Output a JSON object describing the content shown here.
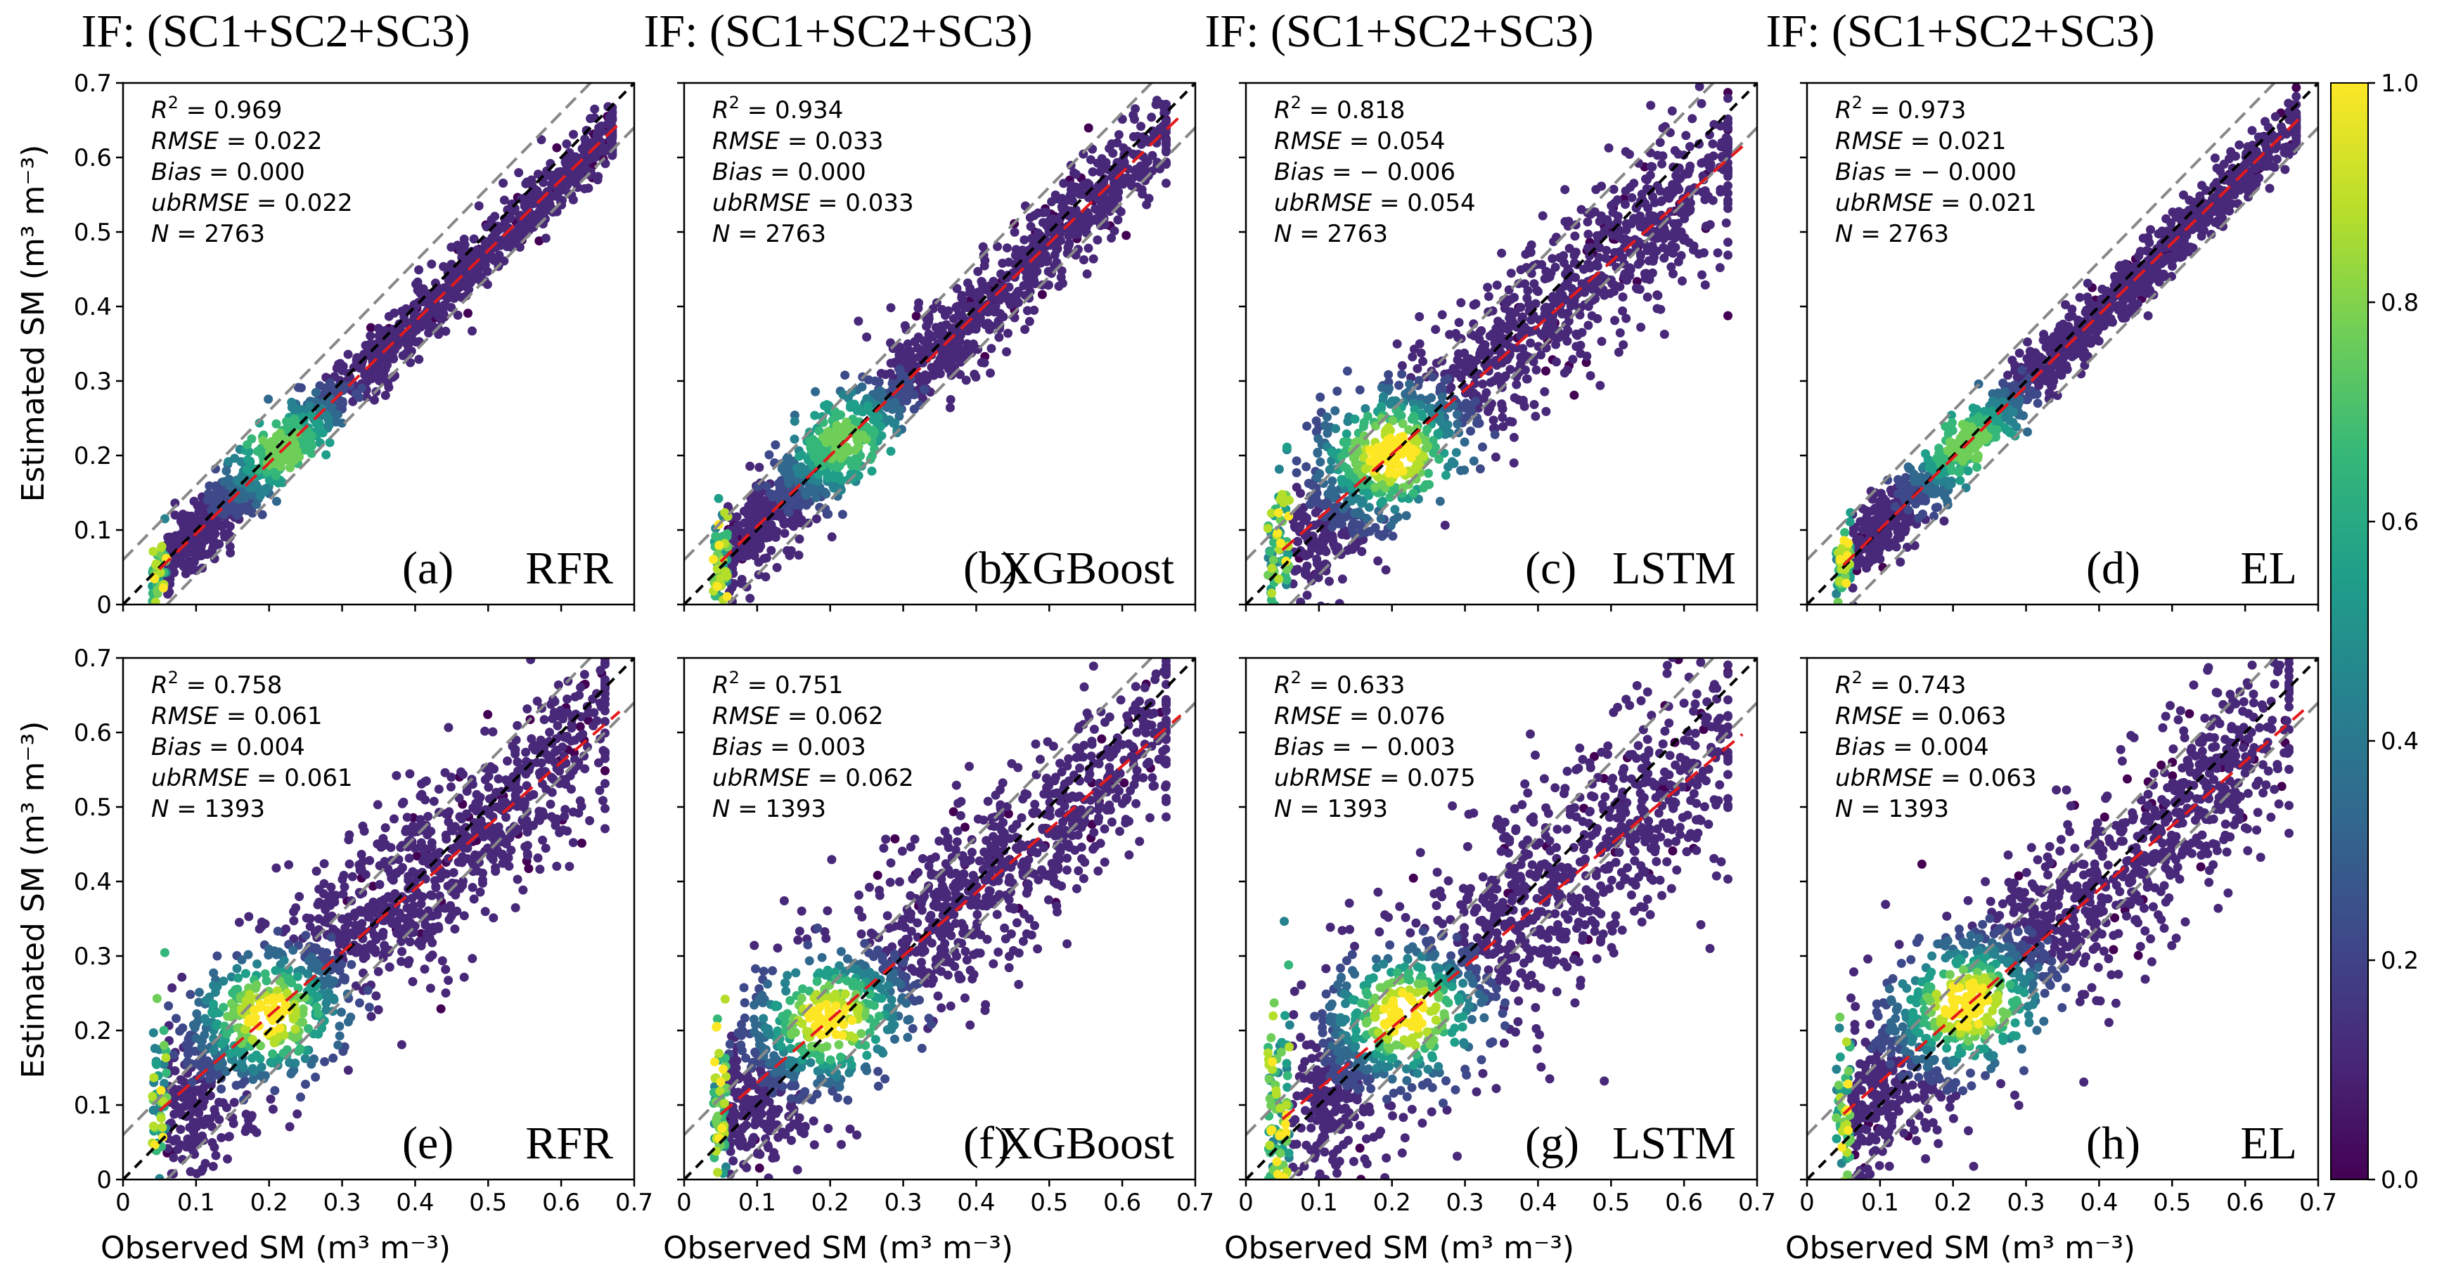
{
  "figure": {
    "column_title": "IF: (SC1+SC2+SC3)",
    "xlabel": "Observed SM (m³ m⁻³)",
    "ylabel": "Estimated SM (m³ m⁻³)"
  },
  "chart_data": {
    "type": "scatter",
    "subtype": "density-scatter",
    "axis": {
      "xlim": [
        0,
        0.7
      ],
      "ylim": [
        0,
        0.7
      ],
      "ticks": [
        0,
        0.1,
        0.2,
        0.3,
        0.4,
        0.5,
        0.6,
        0.7
      ],
      "tick_labels": [
        "0",
        "0.1",
        "0.2",
        "0.3",
        "0.4",
        "0.5",
        "0.6",
        "0.7"
      ],
      "reference_lines": {
        "one_to_one": "black dashed",
        "tolerance_bands": "grey dashed, ±0.06",
        "fit": "red dashed"
      }
    },
    "colorbar": {
      "range": [
        0,
        1.0
      ],
      "ticks": [
        0.0,
        0.2,
        0.4,
        0.6,
        0.8,
        1.0
      ],
      "tick_labels": [
        "0.0",
        "0.2",
        "0.4",
        "0.6",
        "0.8",
        "1.0"
      ],
      "colormap": [
        "#440154",
        "#482878",
        "#3e4989",
        "#31688e",
        "#26828e",
        "#1f9e89",
        "#35b779",
        "#6ece58",
        "#b5de2b",
        "#fde725"
      ]
    },
    "panels": [
      {
        "letter": "(a)",
        "model": "RFR",
        "r2": "0.969",
        "rmse": "0.022",
        "bias": "0.000",
        "ubrmse": "0.022",
        "n": "2763",
        "slope": 0.95,
        "intercept": 0.0,
        "spread": 0.022,
        "seed": 11,
        "xmin": 0.04,
        "xmax": 0.67,
        "hot": [
          0.22,
          0.05
        ]
      },
      {
        "letter": "(b)",
        "model": "XGBoost",
        "r2": "0.934",
        "rmse": "0.033",
        "bias": "0.000",
        "ubrmse": "0.033",
        "n": "2763",
        "slope": 0.95,
        "intercept": 0.01,
        "spread": 0.033,
        "seed": 23,
        "xmin": 0.04,
        "xmax": 0.66,
        "hot": [
          0.22,
          0.05
        ]
      },
      {
        "letter": "(c)",
        "model": "LSTM",
        "r2": "0.818",
        "rmse": "0.054",
        "bias": "− 0.006",
        "ubrmse": "0.054",
        "n": "2763",
        "slope": 0.86,
        "intercept": 0.03,
        "spread": 0.054,
        "seed": 37,
        "xmin": 0.03,
        "xmax": 0.66,
        "hot": [
          0.2,
          0.19
        ]
      },
      {
        "letter": "(d)",
        "model": "EL",
        "r2": "0.973",
        "rmse": "0.021",
        "bias": "− 0.000",
        "ubrmse": "0.021",
        "n": "2763",
        "slope": 0.96,
        "intercept": 0.005,
        "spread": 0.021,
        "seed": 41,
        "xmin": 0.04,
        "xmax": 0.67,
        "hot": [
          0.22,
          0.05
        ]
      },
      {
        "letter": "(e)",
        "model": "RFR",
        "r2": "0.758",
        "rmse": "0.061",
        "bias": "0.004",
        "ubrmse": "0.061",
        "n": "1393",
        "slope": 0.85,
        "intercept": 0.05,
        "spread": 0.061,
        "seed": 53,
        "xmin": 0.04,
        "xmax": 0.66,
        "hot": [
          0.2,
          0.18
        ]
      },
      {
        "letter": "(f)",
        "model": "XGBoost",
        "r2": "0.751",
        "rmse": "0.062",
        "bias": "0.003",
        "ubrmse": "0.062",
        "n": "1393",
        "slope": 0.85,
        "intercept": 0.045,
        "spread": 0.062,
        "seed": 67,
        "xmin": 0.04,
        "xmax": 0.66,
        "hot": [
          0.2,
          0.18
        ]
      },
      {
        "letter": "(g)",
        "model": "LSTM",
        "r2": "0.633",
        "rmse": "0.076",
        "bias": "− 0.003",
        "ubrmse": "0.075",
        "n": "1393",
        "slope": 0.82,
        "intercept": 0.04,
        "spread": 0.076,
        "seed": 79,
        "xmin": 0.03,
        "xmax": 0.66,
        "hot": [
          0.22,
          0.2
        ]
      },
      {
        "letter": "(h)",
        "model": "EL",
        "r2": "0.743",
        "rmse": "0.063",
        "bias": "0.004",
        "ubrmse": "0.063",
        "n": "1393",
        "slope": 0.86,
        "intercept": 0.045,
        "spread": 0.063,
        "seed": 83,
        "xmin": 0.04,
        "xmax": 0.66,
        "hot": [
          0.22,
          0.2
        ]
      }
    ]
  }
}
